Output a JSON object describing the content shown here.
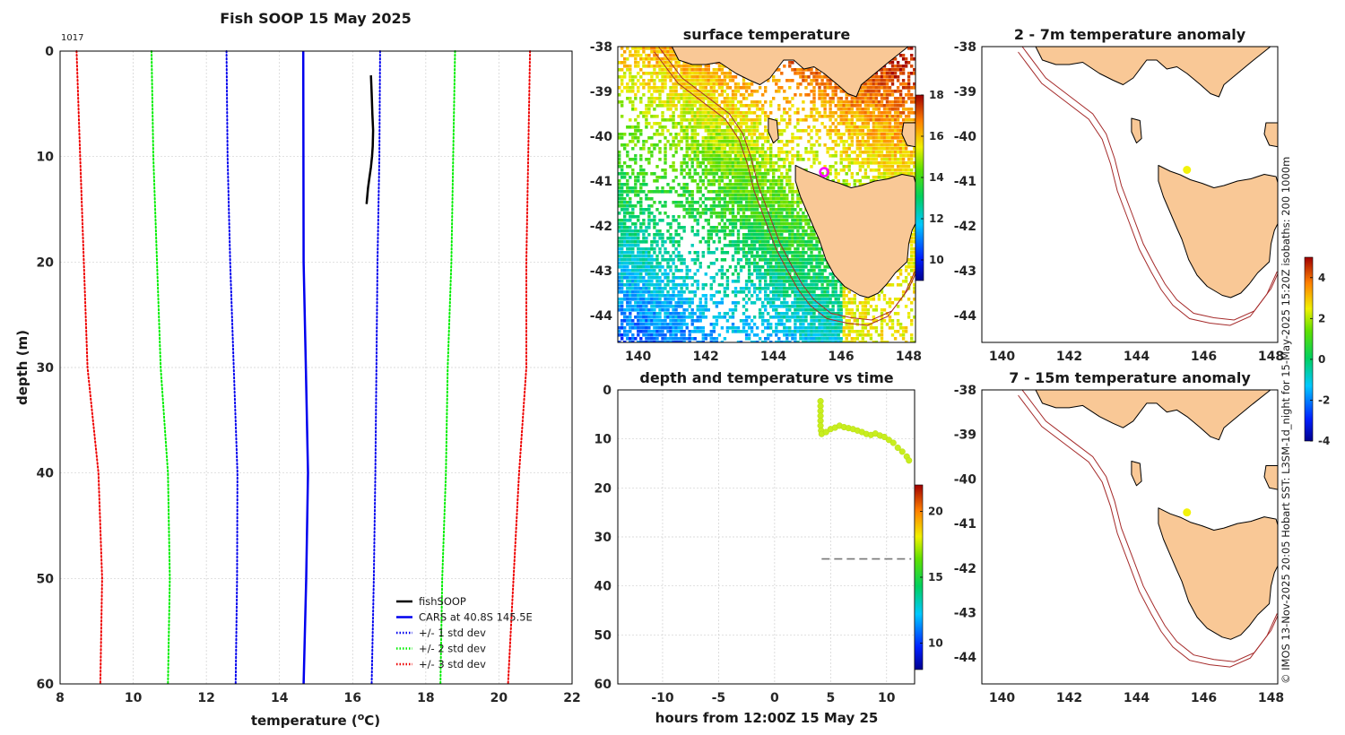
{
  "figure": {
    "main_title": "Fish SOOP 15 May 2025",
    "station_id": "1017",
    "side_note": "© IMOS 13-Nov-2025 20:05 Hobart SST: L3SM-1d_night for 15-May-2025 15:20Z isobaths: 200  1000m"
  },
  "chart_data": [
    {
      "id": "profile",
      "type": "line",
      "title": "Fish SOOP 15 May 2025",
      "xlabel": "temperature (°C)",
      "ylabel": "depth (m)",
      "xlim": [
        8,
        22
      ],
      "ylim": [
        0,
        60
      ],
      "y_inverted": true,
      "xticks": [
        8,
        10,
        12,
        14,
        16,
        18,
        20,
        22
      ],
      "yticks": [
        0,
        10,
        20,
        30,
        40,
        50,
        60
      ],
      "grid": true,
      "legend_position": "bottom-right",
      "series": [
        {
          "name": "fishSOOP",
          "color": "#000000",
          "style": "solid",
          "width": 2.5,
          "points": [
            [
              16.5,
              2.3
            ],
            [
              16.52,
              4
            ],
            [
              16.54,
              6
            ],
            [
              16.56,
              7.5
            ],
            [
              16.55,
              9
            ],
            [
              16.53,
              10
            ],
            [
              16.5,
              11
            ],
            [
              16.46,
              12
            ],
            [
              16.42,
              13
            ],
            [
              16.38,
              14.5
            ]
          ]
        },
        {
          "name": "CARS at 40.8S 145.5E",
          "color": "#0000ee",
          "style": "solid",
          "width": 2.5,
          "points": [
            [
              14.65,
              0
            ],
            [
              14.66,
              20
            ],
            [
              14.72,
              30
            ],
            [
              14.78,
              40
            ],
            [
              14.73,
              50
            ],
            [
              14.66,
              60
            ]
          ]
        },
        {
          "name": "+/- 1 std dev",
          "color": "#0000ee",
          "style": "dotted",
          "width": 2,
          "points": [
            [
              12.55,
              0
            ],
            [
              12.58,
              10
            ],
            [
              12.65,
              20
            ],
            [
              12.75,
              30
            ],
            [
              12.85,
              40
            ],
            [
              12.84,
              50
            ],
            [
              12.8,
              60
            ]
          ]
        },
        {
          "name": "",
          "color": "#0000ee",
          "style": "dotted",
          "width": 2,
          "points": [
            [
              16.75,
              0
            ],
            [
              16.73,
              10
            ],
            [
              16.68,
              20
            ],
            [
              16.65,
              30
            ],
            [
              16.62,
              40
            ],
            [
              16.58,
              50
            ],
            [
              16.52,
              60
            ]
          ]
        },
        {
          "name": "+/- 2 std dev",
          "color": "#00ee00",
          "style": "dotted",
          "width": 2,
          "points": [
            [
              10.5,
              0
            ],
            [
              10.55,
              10
            ],
            [
              10.65,
              20
            ],
            [
              10.75,
              30
            ],
            [
              10.95,
              40
            ],
            [
              11.0,
              50
            ],
            [
              10.95,
              60
            ]
          ]
        },
        {
          "name": "",
          "color": "#00ee00",
          "style": "dotted",
          "width": 2,
          "points": [
            [
              18.8,
              0
            ],
            [
              18.75,
              10
            ],
            [
              18.7,
              20
            ],
            [
              18.6,
              30
            ],
            [
              18.55,
              40
            ],
            [
              18.45,
              50
            ],
            [
              18.4,
              60
            ]
          ]
        },
        {
          "name": "+/- 3 std dev",
          "color": "#ee0000",
          "style": "dotted",
          "width": 2,
          "points": [
            [
              8.45,
              0
            ],
            [
              8.55,
              10
            ],
            [
              8.65,
              20
            ],
            [
              8.75,
              30
            ],
            [
              9.05,
              40
            ],
            [
              9.15,
              50
            ],
            [
              9.1,
              60
            ]
          ]
        },
        {
          "name": "",
          "color": "#ee0000",
          "style": "dotted",
          "width": 2,
          "points": [
            [
              20.85,
              0
            ],
            [
              20.8,
              10
            ],
            [
              20.75,
              20
            ],
            [
              20.75,
              30
            ],
            [
              20.55,
              40
            ],
            [
              20.4,
              50
            ],
            [
              20.25,
              60
            ]
          ]
        }
      ]
    },
    {
      "id": "sst_map",
      "type": "heatmap",
      "title": "surface temperature",
      "xlim": [
        139.4,
        148.2
      ],
      "ylim": [
        -44.6,
        -38
      ],
      "xticks": [
        140,
        142,
        144,
        146,
        148
      ],
      "yticks": [
        -38,
        -39,
        -40,
        -41,
        -42,
        -43,
        -44
      ],
      "colorbar": {
        "min": 9,
        "max": 18,
        "ticks": [
          10,
          12,
          14,
          16,
          18
        ]
      },
      "marker": {
        "lon": 145.5,
        "lat": -40.8,
        "color": "#ff00ff"
      }
    },
    {
      "id": "depth_time",
      "type": "scatter",
      "title": "depth and temperature vs time",
      "xlabel": "hours from 12:00Z 15 May 25",
      "xlim": [
        -14,
        12.5
      ],
      "ylim": [
        0,
        60
      ],
      "y_inverted": true,
      "xticks": [
        -10,
        -5,
        0,
        5,
        10
      ],
      "yticks": [
        0,
        10,
        20,
        30,
        40,
        50,
        60
      ],
      "colorbar": {
        "min": 8,
        "max": 22,
        "ticks": [
          10,
          15,
          20
        ]
      },
      "bottom_depth": 34.5,
      "bottom_xrange": [
        4.2,
        12.2
      ],
      "points": [
        [
          4.1,
          2.3
        ],
        [
          4.1,
          3.3
        ],
        [
          4.1,
          4.3
        ],
        [
          4.1,
          5.3
        ],
        [
          4.1,
          6.3
        ],
        [
          4.1,
          7.3
        ],
        [
          4.15,
          8.3
        ],
        [
          4.2,
          9
        ],
        [
          4.6,
          8.6
        ],
        [
          5.0,
          8
        ],
        [
          5.4,
          7.7
        ],
        [
          5.8,
          7.3
        ],
        [
          6.2,
          7.6
        ],
        [
          6.6,
          7.8
        ],
        [
          7.0,
          8
        ],
        [
          7.4,
          8.3
        ],
        [
          7.8,
          8.6
        ],
        [
          8.2,
          9
        ],
        [
          8.6,
          9.2
        ],
        [
          9.0,
          8.9
        ],
        [
          9.4,
          9.3
        ],
        [
          9.8,
          9.6
        ],
        [
          10.2,
          10.2
        ],
        [
          10.6,
          10.8
        ],
        [
          11.0,
          11.8
        ],
        [
          11.4,
          12.6
        ],
        [
          11.8,
          13.6
        ],
        [
          12.0,
          14.4
        ]
      ],
      "point_temperature": 16.5
    },
    {
      "id": "anom_surface",
      "type": "heatmap",
      "title": "2 - 7m temperature anomaly",
      "xlim": [
        139.4,
        148.2
      ],
      "ylim": [
        -44.6,
        -38
      ],
      "xticks": [
        140,
        142,
        144,
        146,
        148
      ],
      "yticks": [
        -38,
        -39,
        -40,
        -41,
        -42,
        -43,
        -44
      ],
      "colorbar": {
        "min": -4,
        "max": 5,
        "ticks": [
          -4,
          -2,
          0,
          2,
          4
        ]
      },
      "marker": {
        "lon": 145.5,
        "lat": -40.75,
        "color": "#f2f20a"
      }
    },
    {
      "id": "anom_deep",
      "type": "heatmap",
      "title": "7 - 15m temperature anomaly",
      "xlim": [
        139.4,
        148.2
      ],
      "ylim": [
        -44.6,
        -38
      ],
      "xticks": [
        140,
        142,
        144,
        146,
        148
      ],
      "yticks": [
        -38,
        -39,
        -40,
        -41,
        -42,
        -43,
        -44
      ],
      "marker": {
        "lon": 145.5,
        "lat": -40.75,
        "color": "#f2f20a"
      }
    }
  ]
}
